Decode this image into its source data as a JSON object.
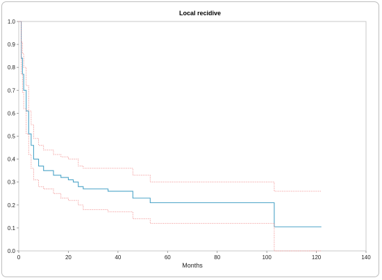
{
  "chart_data": {
    "type": "line",
    "title": "Local recidive",
    "xlabel": "Months",
    "ylabel": "",
    "xlim": [
      0,
      140
    ],
    "ylim": [
      0,
      1.0
    ],
    "x_ticks": [
      "0",
      "20",
      "40",
      "60",
      "80",
      "100",
      "120",
      "140"
    ],
    "y_ticks": [
      "0.0",
      "0.1",
      "0.2",
      "0.3",
      "0.4",
      "0.5",
      "0.6",
      "0.7",
      "0.8",
      "0.9",
      "1.0"
    ],
    "grid": false,
    "legend": "none",
    "series": [
      {
        "role": "estimate",
        "color": "#4aa3c7",
        "style": "solid",
        "x": [
          0,
          1,
          1.5,
          2,
          3,
          4,
          5,
          6,
          8,
          10,
          14,
          17,
          20,
          22,
          24,
          26,
          36,
          46,
          53,
          103,
          122
        ],
        "y": [
          1.0,
          0.84,
          0.77,
          0.7,
          0.61,
          0.51,
          0.46,
          0.4,
          0.37,
          0.35,
          0.33,
          0.32,
          0.31,
          0.3,
          0.28,
          0.27,
          0.26,
          0.23,
          0.21,
          0.105,
          0.105
        ]
      },
      {
        "role": "upper-ci",
        "color": "#f08a8a",
        "style": "dotted",
        "x": [
          0,
          1,
          1.5,
          2,
          3,
          4,
          5,
          6,
          8,
          10,
          14,
          17,
          20,
          24,
          26,
          36,
          46,
          53,
          103,
          122
        ],
        "y": [
          1.0,
          0.91,
          0.86,
          0.8,
          0.72,
          0.61,
          0.55,
          0.49,
          0.46,
          0.44,
          0.42,
          0.41,
          0.4,
          0.37,
          0.36,
          0.36,
          0.33,
          0.3,
          0.26,
          0.26
        ]
      },
      {
        "role": "lower-ci",
        "color": "#f08a8a",
        "style": "dotted",
        "x": [
          0,
          1,
          1.5,
          2,
          3,
          4,
          5,
          6,
          8,
          10,
          14,
          17,
          20,
          24,
          26,
          36,
          46,
          53,
          103,
          122
        ],
        "y": [
          1.0,
          0.77,
          0.69,
          0.62,
          0.51,
          0.42,
          0.36,
          0.31,
          0.28,
          0.27,
          0.25,
          0.23,
          0.22,
          0.2,
          0.18,
          0.17,
          0.14,
          0.12,
          0.0,
          0.0
        ]
      }
    ]
  }
}
